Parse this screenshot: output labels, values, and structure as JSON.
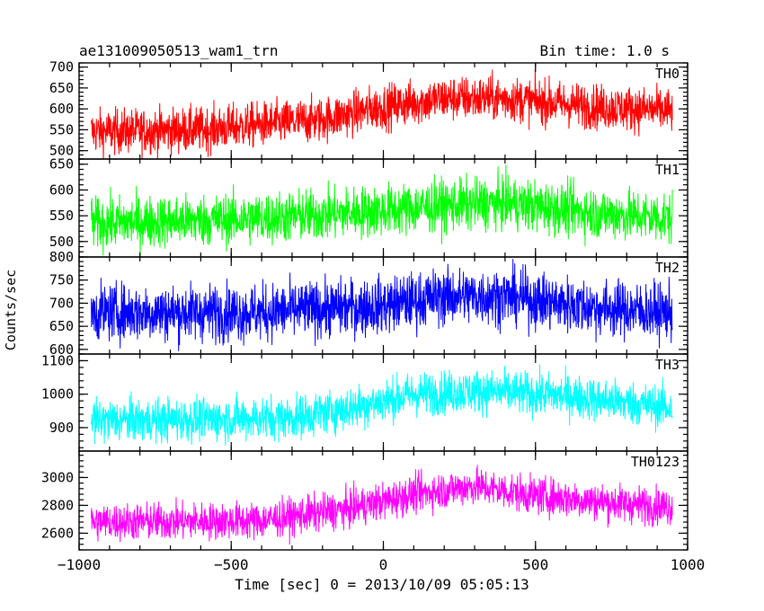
{
  "header": {
    "left_title": "ae131009050513_wam1_trn",
    "right_title": "Bin time: 1.0 s"
  },
  "ylabel": "Counts/sec",
  "xlabel": "Time [sec] 0 = 2013/10/09 05:05:13",
  "chart_data": {
    "type": "line",
    "title": "ae131009050513_wam1_trn",
    "bin_time_label": "Bin time: 1.0 s",
    "xlabel": "Time [sec] 0 = 2013/10/09 05:05:13",
    "ylabel": "Counts/sec",
    "xlim": [
      -1000,
      1000
    ],
    "x_ticks": [
      -1000,
      -500,
      0,
      500,
      1000
    ],
    "x_tick_labels": [
      "−1000",
      "−500",
      "0",
      "500",
      "1000"
    ],
    "x_data_range": [
      -960,
      950
    ],
    "bin_seconds": 1.0,
    "grid": false,
    "legend": "none (panel labels at top-right of each panel)",
    "series": [
      {
        "name": "TH0",
        "color": "#ff0000",
        "ylim": [
          480,
          710
        ],
        "y_ticks": [
          500,
          550,
          600,
          650,
          700
        ],
        "trend": [
          [
            -960,
            545
          ],
          [
            -600,
            550
          ],
          [
            -200,
            575
          ],
          [
            0,
            605
          ],
          [
            200,
            625
          ],
          [
            400,
            625
          ],
          [
            700,
            605
          ],
          [
            950,
            595
          ]
        ],
        "noise_halfwidth": 48
      },
      {
        "name": "TH1",
        "color": "#00ff00",
        "ylim": [
          470,
          660
        ],
        "y_ticks": [
          500,
          550,
          600,
          650
        ],
        "trend": [
          [
            -960,
            535
          ],
          [
            -400,
            545
          ],
          [
            0,
            560
          ],
          [
            200,
            570
          ],
          [
            400,
            575
          ],
          [
            700,
            555
          ],
          [
            950,
            545
          ]
        ],
        "noise_halfwidth": 45
      },
      {
        "name": "TH2",
        "color": "#0000ff",
        "ylim": [
          590,
          800
        ],
        "y_ticks": [
          600,
          650,
          700,
          750,
          800
        ],
        "trend": [
          [
            -960,
            680
          ],
          [
            -400,
            680
          ],
          [
            0,
            695
          ],
          [
            200,
            715
          ],
          [
            400,
            715
          ],
          [
            700,
            690
          ],
          [
            950,
            680
          ]
        ],
        "noise_halfwidth": 55
      },
      {
        "name": "TH3",
        "color": "#00ffff",
        "ylim": [
          830,
          1120
        ],
        "y_ticks": [
          900,
          1000,
          1100
        ],
        "trend": [
          [
            -960,
            920
          ],
          [
            -300,
            930
          ],
          [
            -100,
            960
          ],
          [
            100,
            1000
          ],
          [
            300,
            1010
          ],
          [
            600,
            995
          ],
          [
            950,
            960
          ]
        ],
        "noise_halfwidth": 58
      },
      {
        "name": "TH0123",
        "color": "#ff00ff",
        "ylim": [
          2480,
          3190
        ],
        "y_ticks": [
          2600,
          2800,
          3000
        ],
        "trend": [
          [
            -960,
            2680
          ],
          [
            -400,
            2690
          ],
          [
            -100,
            2780
          ],
          [
            100,
            2880
          ],
          [
            300,
            2940
          ],
          [
            500,
            2870
          ],
          [
            800,
            2810
          ],
          [
            950,
            2790
          ]
        ],
        "noise_halfwidth": 120
      }
    ]
  }
}
